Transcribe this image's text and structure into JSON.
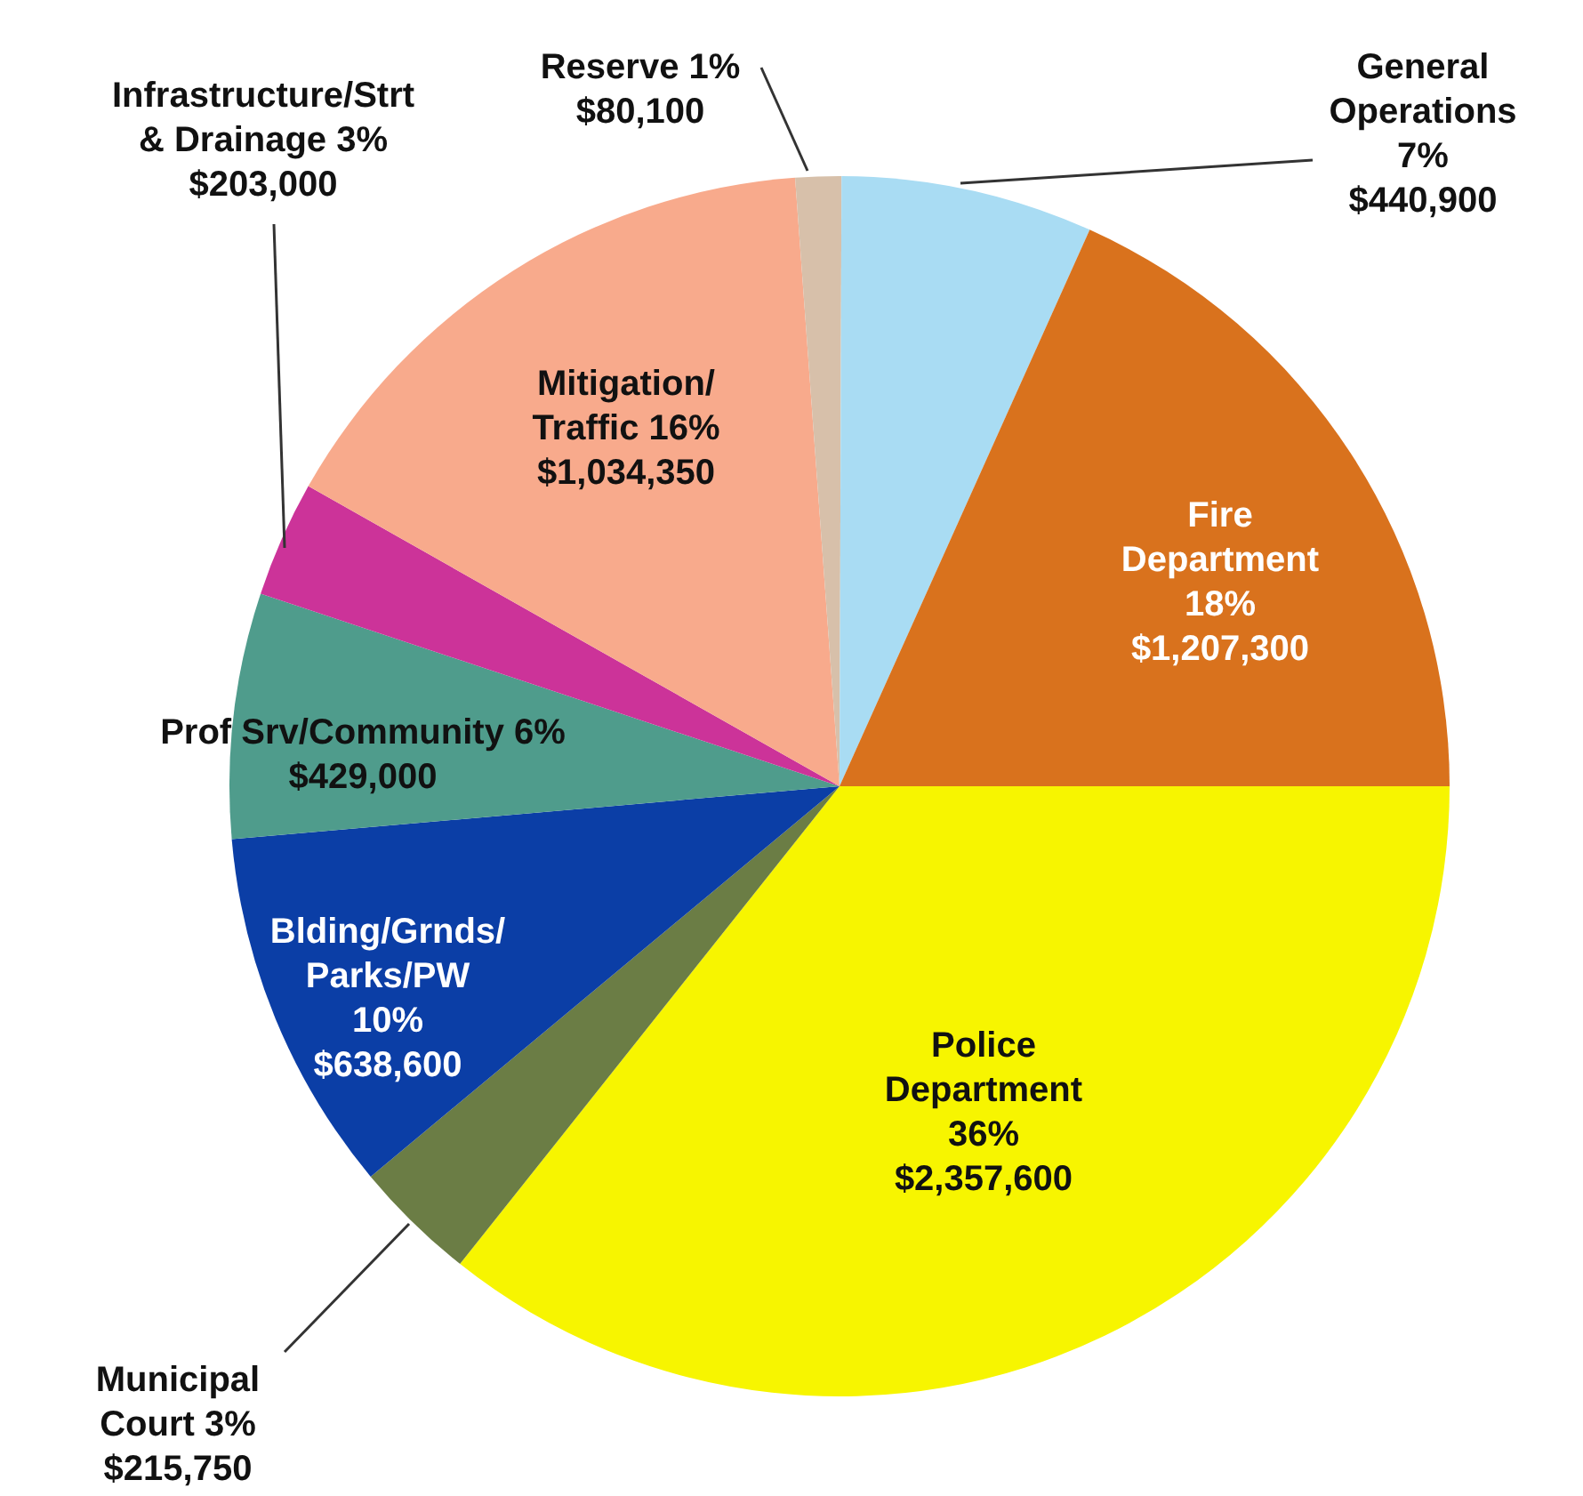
{
  "chart_data": {
    "type": "pie",
    "categories": [
      "Police Department",
      "Municipal Court",
      "Blding/Grnds/Parks/PW",
      "Prof Srv/Community",
      "Infrastructure/Strt & Drainage",
      "Mitigation/ Traffic",
      "Reserve",
      "General Operations",
      "Fire Department"
    ],
    "values": [
      2357600,
      215750,
      638600,
      429000,
      203000,
      1034350,
      80100,
      440900,
      1207300
    ],
    "value_labels": [
      "36% $2,357,600",
      "3% $215,750",
      "10% $638,600",
      "6% $429,000",
      "3% $203,000",
      "16% $1,034,350",
      "1% $80,100",
      "7% $440,900",
      "18% $1,207,300"
    ],
    "colors": [
      "#f7f500",
      "#6b7d45",
      "#0b3ea6",
      "#4f9c8c",
      "#cc3399",
      "#f8aa8c",
      "#d7c0aa",
      "#a9dcf3",
      "#d9721d"
    ]
  }
}
